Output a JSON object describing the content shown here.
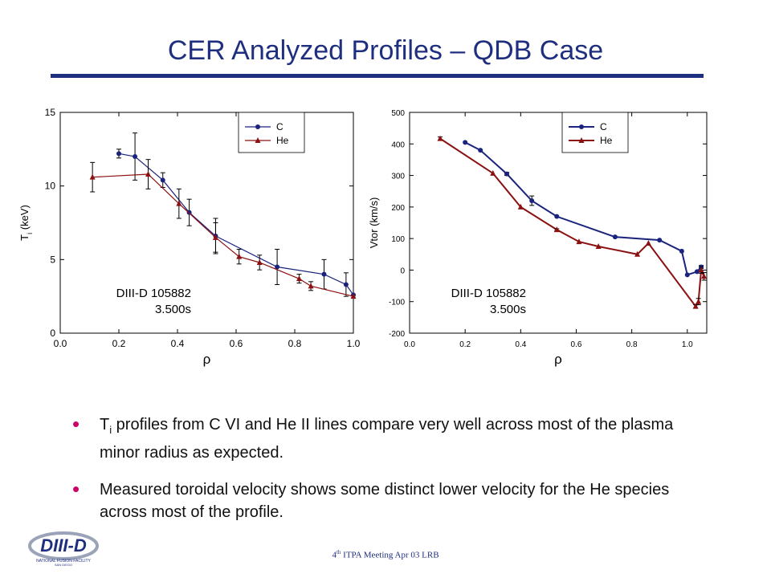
{
  "slide": {
    "title": "CER Analyzed Profiles – QDB  Case",
    "bullets": [
      {
        "prefix": "T",
        "subscript": "i",
        "text": " profiles from C VI and He II lines compare very well across most of the plasma minor radius as expected."
      },
      {
        "prefix": "",
        "subscript": "",
        "text": "Measured toroidal velocity shows some distinct lower velocity for the He species across most of the profile."
      }
    ],
    "footer": {
      "number": "4",
      "superscript": "th",
      "text": " ITPA Meeting  Apr 03  LRB"
    },
    "logo": {
      "main": "DIII-D",
      "sub": "NATIONAL FUSION FACILITY",
      "sub2": "SAN DIEGO"
    }
  },
  "colors": {
    "title": "#1f2f7f",
    "C": "#1a237e",
    "He": "#8b1010",
    "bullet": "#cc0066"
  },
  "chart_data": [
    {
      "type": "line",
      "ylabel_main": "T",
      "ylabel_sub": "i",
      "ylabel_rest": " (keV)",
      "xlabel": "ρ",
      "xlim": [
        0.0,
        1.0
      ],
      "ylim": [
        0,
        15
      ],
      "xticks": [
        "0.0",
        "0.2",
        "0.4",
        "0.6",
        "0.8",
        "1.0"
      ],
      "yticks": [
        "0",
        "5",
        "10",
        "15"
      ],
      "legend_position": "top-right",
      "annotation": [
        "DIII-D  105882",
        "3.500s"
      ],
      "series": [
        {
          "name": "C",
          "marker": "circle",
          "x": [
            0.2,
            0.255,
            0.35,
            0.44,
            0.53,
            0.74,
            0.9,
            0.975,
            1.0
          ],
          "y": [
            12.2,
            12.0,
            10.4,
            8.2,
            6.6,
            4.5,
            4.0,
            3.3,
            2.6
          ],
          "err": [
            0.3,
            1.6,
            0.5,
            0.9,
            1.2,
            1.2,
            1.0,
            0.8,
            0
          ]
        },
        {
          "name": "He",
          "marker": "triangle",
          "x": [
            0.11,
            0.3,
            0.405,
            0.53,
            0.61,
            0.68,
            0.815,
            0.855,
            1.0
          ],
          "y": [
            10.6,
            10.8,
            8.8,
            6.5,
            5.2,
            4.8,
            3.7,
            3.2,
            2.5
          ],
          "err": [
            1.0,
            1.0,
            1.0,
            1.0,
            0.5,
            0.5,
            0.3,
            0.3,
            0
          ]
        }
      ]
    },
    {
      "type": "line",
      "ylabel_main": "Vtor (km/s)",
      "ylabel_sub": "",
      "ylabel_rest": "",
      "xlabel": "ρ",
      "xlim": [
        0.0,
        1.07
      ],
      "ylim": [
        -200,
        500
      ],
      "xticks": [
        "0.0",
        "0.2",
        "0.4",
        "0.6",
        "0.8",
        "1.0"
      ],
      "yticks": [
        "-200",
        "-100",
        "0",
        "100",
        "200",
        "300",
        "400",
        "500"
      ],
      "legend_position": "top-right",
      "annotation": [
        "DIII-D  105882",
        "3.500s"
      ],
      "series": [
        {
          "name": "C",
          "marker": "circle",
          "x": [
            0.2,
            0.255,
            0.35,
            0.44,
            0.53,
            0.74,
            0.9,
            0.98,
            1.0,
            1.035,
            1.05
          ],
          "y": [
            405,
            380,
            305,
            220,
            170,
            105,
            95,
            60,
            -15,
            -5,
            10
          ],
          "err": [
            0,
            0,
            5,
            15,
            0,
            0,
            0,
            0,
            0,
            0,
            5
          ]
        },
        {
          "name": "He",
          "marker": "triangle",
          "x": [
            0.11,
            0.3,
            0.4,
            0.53,
            0.61,
            0.68,
            0.82,
            0.86,
            1.03,
            1.04,
            1.05,
            1.06
          ],
          "y": [
            417,
            307,
            200,
            128,
            90,
            75,
            50,
            85,
            -115,
            -100,
            0,
            -20
          ],
          "err": [
            5,
            0,
            0,
            3,
            0,
            0,
            0,
            0,
            5,
            10,
            10,
            12
          ]
        }
      ]
    }
  ]
}
